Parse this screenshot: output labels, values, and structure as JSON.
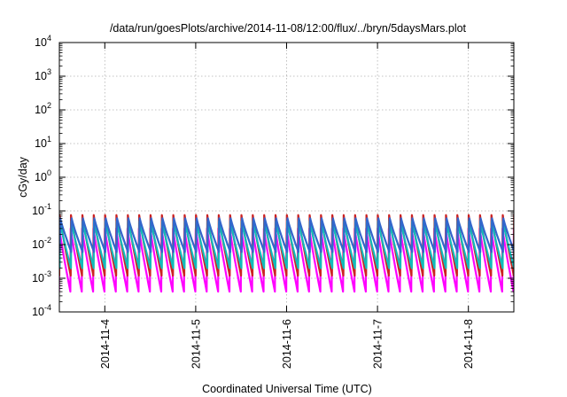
{
  "chart_data": {
    "type": "line",
    "title": "/data/run/goesPlots/archive/2014-11-08/12:00/flux/../bryn/5daysMars.plot",
    "xlabel": "Coordinated Universal Time (UTC)",
    "ylabel": "cGy/day",
    "yscale": "log",
    "ylim": [
      0.0001,
      10000
    ],
    "y_ticks": [
      {
        "base": "10",
        "exp": "-4",
        "value": 0.0001
      },
      {
        "base": "10",
        "exp": "-3",
        "value": 0.001
      },
      {
        "base": "10",
        "exp": "-2",
        "value": 0.01
      },
      {
        "base": "10",
        "exp": "-1",
        "value": 0.1
      },
      {
        "base": "10",
        "exp": "0",
        "value": 1
      },
      {
        "base": "10",
        "exp": "1",
        "value": 10
      },
      {
        "base": "10",
        "exp": "2",
        "value": 100
      },
      {
        "base": "10",
        "exp": "3",
        "value": 1000
      },
      {
        "base": "10",
        "exp": "4",
        "value": 10000
      }
    ],
    "x_range": [
      "2014-11-03T12:00",
      "2014-11-08T12:00"
    ],
    "x_ticks": [
      "2014-11-4",
      "2014-11-5",
      "2014-11-6",
      "2014-11-7",
      "2014-11-8"
    ],
    "grid": true,
    "legend": "none",
    "sawtooth_cycle_hours": 3,
    "series": [
      {
        "color": "#ff00ff",
        "peak": 0.03,
        "trough": 0.0004
      },
      {
        "color": "#cc2222",
        "peak": 0.075,
        "trough": 0.0012
      },
      {
        "color": "#11bbbb",
        "peak": 0.05,
        "trough": 0.002
      },
      {
        "color": "#3366cc",
        "peak": 0.06,
        "trough": 0.006
      }
    ]
  }
}
